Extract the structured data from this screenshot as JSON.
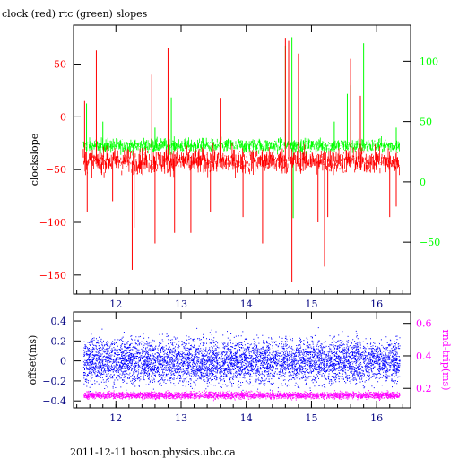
{
  "chart_data": [
    {
      "type": "line",
      "title": "clock (red) rtc (green) slopes",
      "ylabel": "clockslope",
      "xlim": [
        11.35,
        16.52
      ],
      "ylim": [
        -168,
        87
      ],
      "y2lim": [
        -93,
        130
      ],
      "x_ticks": [
        12,
        13,
        14,
        15,
        16
      ],
      "y_ticks": [
        -150,
        -100,
        -50,
        0,
        50
      ],
      "y2_ticks": [
        -50,
        0,
        50,
        100
      ],
      "x_range": [
        11.5,
        16.35
      ],
      "series": [
        {
          "name": "clock",
          "axis": "left",
          "color": "#ff0000",
          "baseline": -42,
          "band": 10,
          "spikes_x": [
            11.52,
            11.56,
            11.7,
            11.95,
            12.25,
            12.28,
            12.55,
            12.6,
            12.8,
            12.9,
            13.15,
            13.45,
            13.6,
            13.95,
            14.25,
            14.6,
            14.65,
            14.7,
            14.8,
            15.1,
            15.2,
            15.25,
            15.6,
            15.75,
            16.2,
            16.3
          ],
          "spikes_y": [
            15,
            -90,
            63,
            -80,
            -145,
            -105,
            40,
            -120,
            65,
            -110,
            -110,
            -90,
            18,
            -95,
            -120,
            75,
            72,
            -157,
            60,
            -100,
            -142,
            -95,
            55,
            20,
            -95,
            -85
          ]
        },
        {
          "name": "rtc",
          "axis": "right",
          "color": "#00ff00",
          "baseline": 30,
          "band": 5,
          "spikes_x": [
            11.55,
            11.8,
            12.6,
            12.85,
            14.6,
            14.7,
            14.72,
            15.35,
            15.55,
            15.6,
            15.8,
            16.3
          ],
          "spikes_y": [
            65,
            50,
            45,
            70,
            113,
            120,
            -30,
            50,
            73,
            80,
            115,
            45
          ]
        }
      ]
    },
    {
      "type": "scatter",
      "ylabel": "offset(ms)",
      "y2label": "rnd-trip(ms)",
      "xlim": [
        11.35,
        16.52
      ],
      "ylim": [
        -0.47,
        0.49
      ],
      "y2lim": [
        0.08,
        0.67
      ],
      "x_ticks": [
        12,
        13,
        14,
        15,
        16
      ],
      "y_ticks": [
        -0.4,
        -0.2,
        0,
        0.2,
        0.4
      ],
      "y_tick_labels": [
        "−0.4",
        "−0.2",
        "0",
        "0.2",
        "0.4"
      ],
      "y2_ticks": [
        0.2,
        0.4,
        0.6
      ],
      "x_range": [
        11.5,
        16.35
      ],
      "series": [
        {
          "name": "offset",
          "axis": "left",
          "color": "#0000ff",
          "center": 0.0,
          "spread": 0.11,
          "count": 6000
        },
        {
          "name": "rnd-trip",
          "axis": "right",
          "color": "#ff00ff",
          "center": 0.16,
          "spread": 0.01,
          "count": 3000
        }
      ]
    }
  ],
  "footer": "2011-12-11 boson.physics.ubc.ca"
}
